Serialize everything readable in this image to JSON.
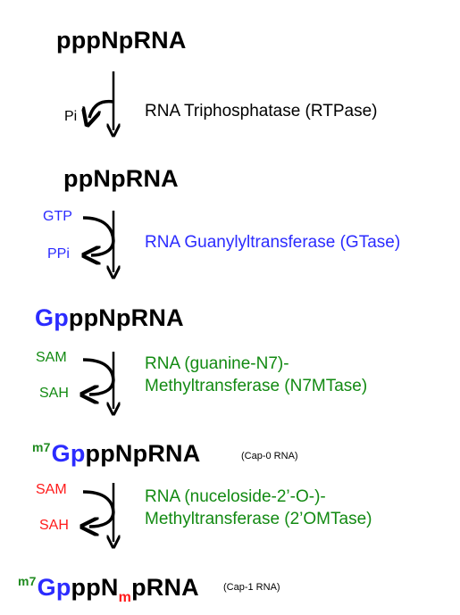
{
  "species": {
    "s1": "pppNpRNA",
    "s2": "ppNpRNA",
    "s3_gp": "Gp",
    "s3_rest": "ppNpRNA",
    "s4_m7": "m7",
    "s4_gp": "Gp",
    "s4_rest": "ppNpRNA",
    "s4_note": "(Cap-0 RNA)",
    "s5_m7": "m7",
    "s5_gp": "Gp",
    "s5_ppn": "ppN",
    "s5_m": "m",
    "s5_rest": "pRNA",
    "s5_note": "(Cap-1 RNA)"
  },
  "steps": [
    {
      "inputs": [],
      "outputs": [
        "Pi"
      ],
      "enzyme_lines": [
        "RNA Triphosphatase (RTPase)"
      ],
      "color": "#000000"
    },
    {
      "inputs": [
        "GTP"
      ],
      "outputs": [
        "PPi"
      ],
      "enzyme_lines": [
        "RNA Guanylyltransferase (GTase)"
      ],
      "color": "#2b2bff"
    },
    {
      "inputs": [
        "SAM"
      ],
      "outputs": [
        "SAH"
      ],
      "enzyme_lines": [
        "RNA (guanine-N7)-",
        "Methyltransferase (N7MTase)"
      ],
      "color": "#128a12"
    },
    {
      "inputs": [
        "SAM"
      ],
      "outputs": [
        "SAH"
      ],
      "enzyme_lines": [
        "RNA (nuceloside-2’-O-)-",
        "Methyltransferase (2’OMTase)"
      ],
      "color": "#128a12"
    }
  ]
}
